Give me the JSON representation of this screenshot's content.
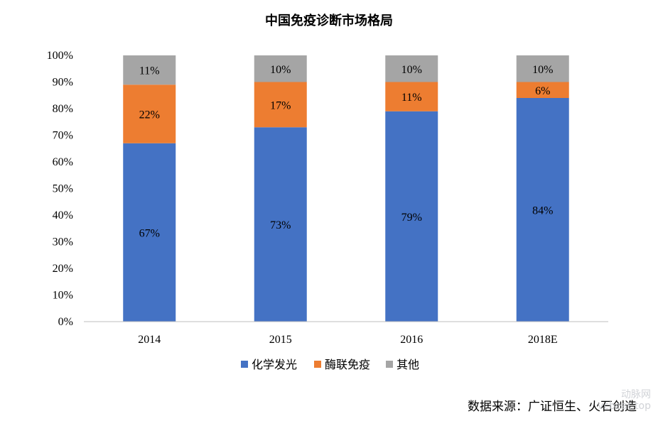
{
  "chart_data": {
    "type": "bar",
    "stacked": true,
    "title": "中国免疫诊断市场格局",
    "categories": [
      "2014",
      "2015",
      "2016",
      "2018E"
    ],
    "series": [
      {
        "name": "化学发光",
        "values": [
          67,
          73,
          79,
          84
        ],
        "labels": [
          "67%",
          "73%",
          "79%",
          "84%"
        ],
        "color": "#4472C4"
      },
      {
        "name": "酶联免疫",
        "values": [
          22,
          17,
          11,
          6
        ],
        "labels": [
          "22%",
          "17%",
          "11%",
          "6%"
        ],
        "color": "#ED7D31"
      },
      {
        "name": "其他",
        "values": [
          11,
          10,
          10,
          10
        ],
        "labels": [
          "11%",
          "10%",
          "10%",
          "10%"
        ],
        "color": "#A5A5A5"
      }
    ],
    "yticks": [
      "0%",
      "10%",
      "20%",
      "30%",
      "40%",
      "50%",
      "60%",
      "70%",
      "80%",
      "90%",
      "100%"
    ],
    "ylim": [
      0,
      100
    ],
    "grid": false,
    "legend_position": "bottom"
  },
  "source_text": "数据来源：广证恒生、火石创造",
  "watermark": {
    "brand": "动脉网",
    "url": "vcbeat.top"
  }
}
